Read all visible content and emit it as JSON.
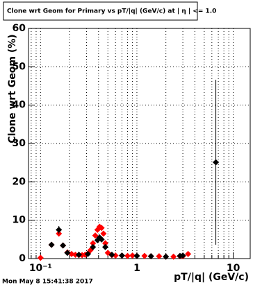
{
  "chart_data": {
    "type": "scatter",
    "title": "Clone wrt Geom for Primary vs pT/|q| (GeV/c) at | η | <= 1.0",
    "x_label": "pT/|q| (GeV/c)",
    "y_label": "Clone wrt Geom (%)",
    "timestamp": "Mon May  8 15:41:38 2017",
    "x_log": true,
    "grid": true,
    "xlim": [
      0.075,
      15
    ],
    "ylim": [
      0,
      60
    ],
    "xticks": [
      {
        "value": 0.1,
        "label": "10⁻¹"
      },
      1,
      10
    ],
    "xminorticks": [
      0.08,
      0.09,
      0.2,
      0.3,
      0.4,
      0.5,
      0.6,
      0.7,
      0.8,
      0.9,
      2,
      3,
      4,
      5,
      6,
      7,
      8,
      9
    ],
    "yticks": [
      0,
      10,
      20,
      30,
      40,
      50,
      60
    ],
    "series": [
      {
        "name": "red",
        "color": "#ff0000",
        "x": [
          0.1,
          0.13,
          0.155,
          0.171,
          0.19,
          0.21,
          0.23,
          0.25,
          0.27,
          0.29,
          0.31,
          0.33,
          0.35,
          0.37,
          0.39,
          0.41,
          0.43,
          0.45,
          0.47,
          0.5,
          0.55,
          0.6,
          0.7,
          0.8,
          0.9,
          1.0,
          1.2,
          1.4,
          1.7,
          2.0,
          2.4,
          2.8,
          3.0,
          3.4
        ],
        "values": [
          0.2,
          3.6,
          6.5,
          3.4,
          1.6,
          1.2,
          1.0,
          0.9,
          0.9,
          1.0,
          1.3,
          2.2,
          4.0,
          6.0,
          7.5,
          8.3,
          8.0,
          6.5,
          4.0,
          1.5,
          0.9,
          0.8,
          0.8,
          0.7,
          0.8,
          0.7,
          0.7,
          0.6,
          0.6,
          0.5,
          0.5,
          0.6,
          0.6,
          1.2
        ]
      },
      {
        "name": "black",
        "color": "#000000",
        "x": [
          0.13,
          0.155,
          0.171,
          0.19,
          0.25,
          0.31,
          0.35,
          0.39,
          0.41,
          0.43,
          0.47,
          0.55,
          0.7,
          1.0,
          1.4,
          2.0,
          2.8,
          3.0,
          6.6
        ],
        "values": [
          3.6,
          7.5,
          3.4,
          1.5,
          1.0,
          1.2,
          3.0,
          4.8,
          5.5,
          5.0,
          3.0,
          1.0,
          0.8,
          0.7,
          0.6,
          0.5,
          0.7,
          0.8,
          25.1
        ],
        "errors": [
          0.5,
          1.0,
          0.6,
          0.3,
          0.2,
          0.3,
          0.5,
          0.7,
          0.8,
          0.7,
          0.5,
          0.2,
          0.1,
          0.1,
          0.1,
          0.1,
          0.3,
          0.4,
          21.5
        ]
      }
    ]
  }
}
